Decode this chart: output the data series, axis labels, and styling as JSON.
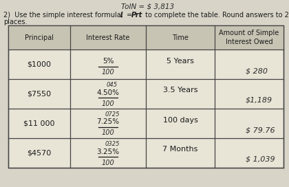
{
  "title_top": "ToIN = $ 3,813",
  "bg_color": "#d8d4c8",
  "table_bg": "#e8e4d6",
  "header_bg": "#c8c4b4",
  "line_color": "#444444",
  "text_color": "#1a1a1a",
  "hw_color": "#2a2a2a",
  "col_headers": [
    "Principal",
    "Interest Rate",
    "Time",
    "Amount of Simple\nInterest Owed"
  ],
  "rows": [
    {
      "principal": "$1000",
      "rate_top": "",
      "rate_main": "5%",
      "rate_bottom": "100",
      "time": "5 Years",
      "amount": "$ 280"
    },
    {
      "principal": "$7550",
      "rate_top": "045",
      "rate_main": "4.50%",
      "rate_bottom": "100",
      "time": "3.5 Years",
      "amount": "$1,189"
    },
    {
      "principal": "$11 000",
      "rate_top": "0725",
      "rate_main": "7.25%",
      "rate_bottom": "100",
      "time": "100 days",
      "amount": "$ 79.76"
    },
    {
      "principal": "$4570",
      "rate_top": "0325",
      "rate_main": "3.25%",
      "rate_bottom": "100",
      "time": "7 Months",
      "amount": "$ 1,039"
    }
  ]
}
